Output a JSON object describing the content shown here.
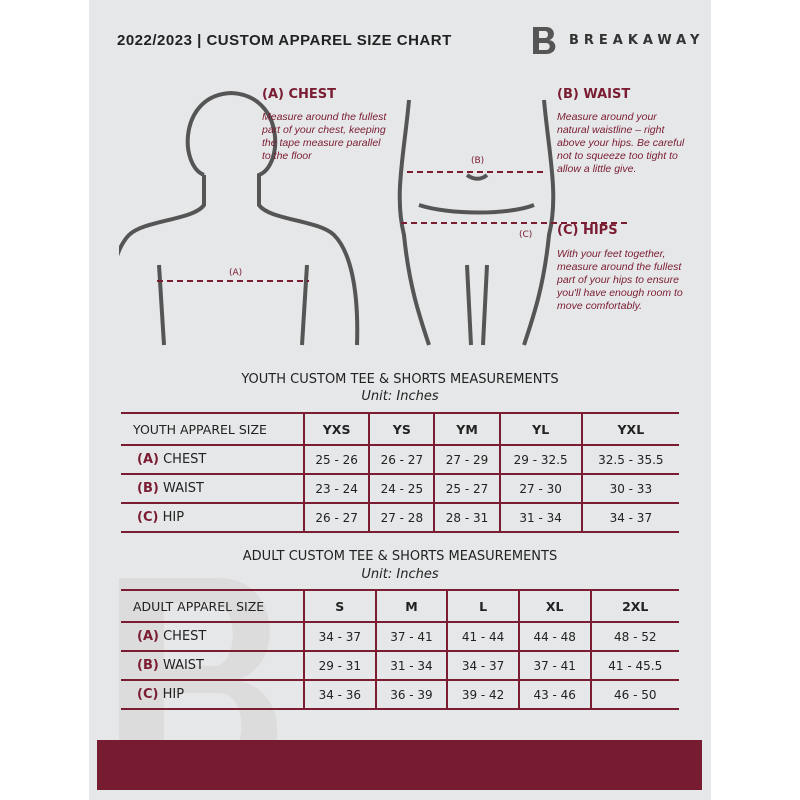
{
  "header": {
    "title": "2022/2023  |  CUSTOM APPAREL SIZE CHART",
    "brand": "BREAKAWAY"
  },
  "colors": {
    "accent": "#771b31",
    "background": "#e6e7e8"
  },
  "guides": {
    "chest": {
      "heading": "(A) CHEST",
      "text": "Measure around the fullest part of your chest, keeping the tape measure parallel to the floor",
      "marker": "(A)"
    },
    "waist": {
      "heading": "(B) WAIST",
      "text": "Measure around your natural waistline – right above your hips. Be careful not to squeeze too tight to allow a little give.",
      "marker": "(B)"
    },
    "hips": {
      "heading": "(C) HIPS",
      "text": "With your feet together, measure around the fullest part of your hips to ensure you'll have enough room to move comfortably.",
      "marker": "(C)"
    }
  },
  "youth": {
    "title": "YOUTH CUSTOM TEE & SHORTS MEASUREMENTS",
    "unit": "Unit: Inches",
    "header": [
      "YOUTH APPAREL SIZE",
      "YXS",
      "YS",
      "YM",
      "YL",
      "YXL"
    ],
    "rows": [
      {
        "letter": "(A)",
        "label": "CHEST",
        "values": [
          "25 - 26",
          "26 - 27",
          "27 - 29",
          "29 - 32.5",
          "32.5 - 35.5"
        ]
      },
      {
        "letter": "(B)",
        "label": "WAIST",
        "values": [
          "23 - 24",
          "24 - 25",
          "25 - 27",
          "27 - 30",
          "30 - 33"
        ]
      },
      {
        "letter": "(C)",
        "label": "HIP",
        "values": [
          "26 - 27",
          "27 - 28",
          "28 - 31",
          "31 - 34",
          "34 - 37"
        ]
      }
    ]
  },
  "adult": {
    "title": "ADULT CUSTOM TEE & SHORTS MEASUREMENTS",
    "unit": "Unit: Inches",
    "header": [
      "ADULT APPAREL SIZE",
      "S",
      "M",
      "L",
      "XL",
      "2XL"
    ],
    "rows": [
      {
        "letter": "(A)",
        "label": "CHEST",
        "values": [
          "34 - 37",
          "37 - 41",
          "41 - 44",
          "44 - 48",
          "48 - 52"
        ]
      },
      {
        "letter": "(B)",
        "label": "WAIST",
        "values": [
          "29 - 31",
          "31 - 34",
          "34 - 37",
          "37 - 41",
          "41 - 45.5"
        ]
      },
      {
        "letter": "(C)",
        "label": "HIP",
        "values": [
          "34 - 36",
          "36 - 39",
          "39 - 42",
          "43 - 46",
          "46 - 50"
        ]
      }
    ]
  }
}
